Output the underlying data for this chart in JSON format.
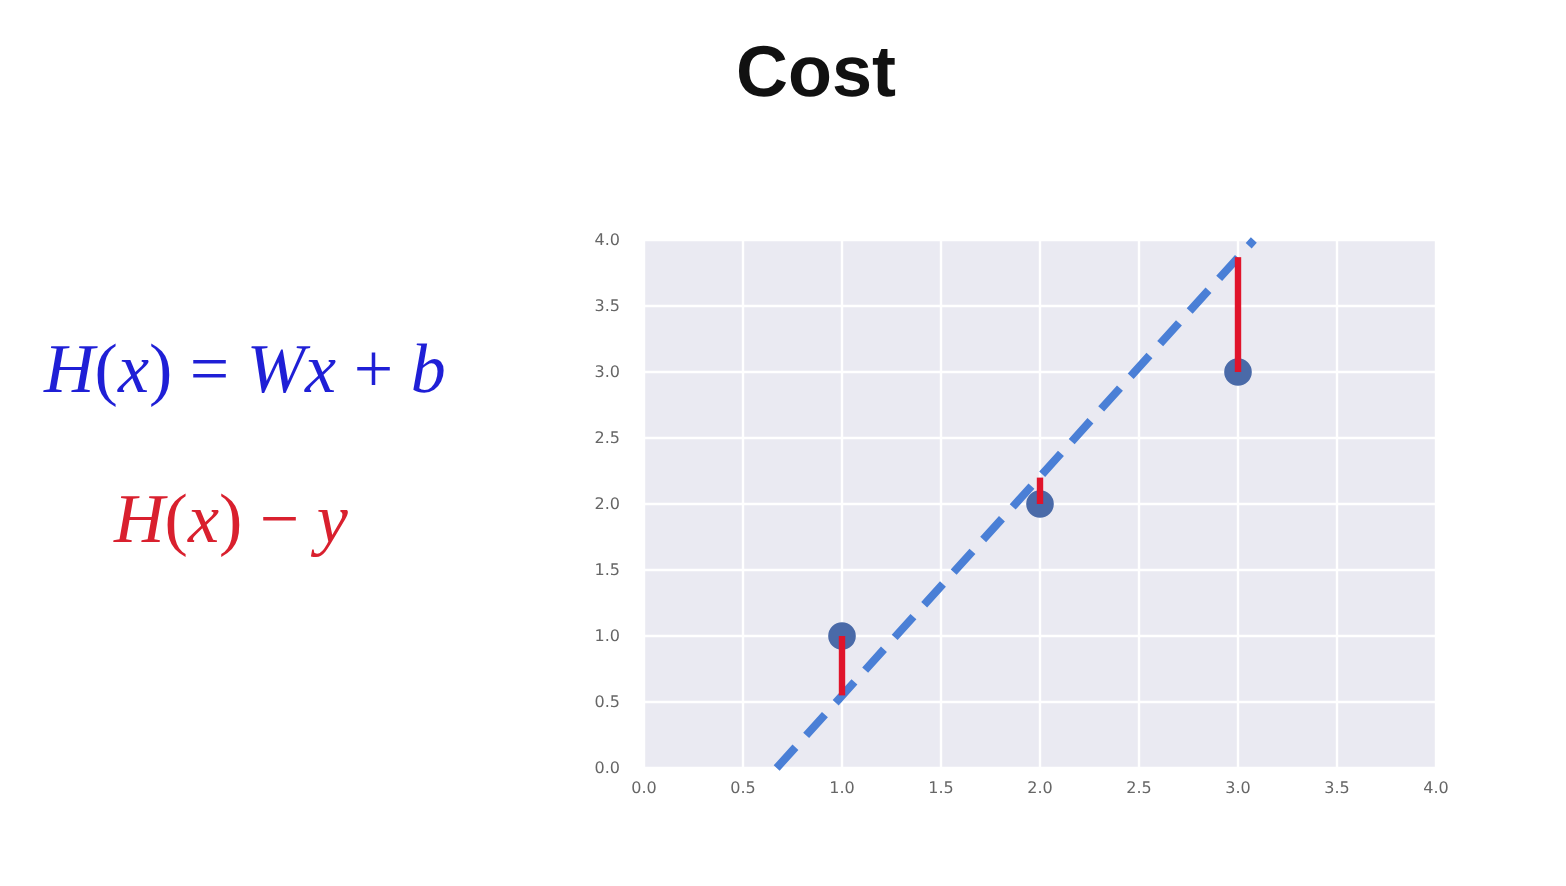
{
  "chart_data": {
    "type": "scatter",
    "title": "Cost",
    "annotations": [
      "H(x) = Wx + b",
      "H(x) − y"
    ],
    "xlim": [
      0,
      4
    ],
    "ylim": [
      0,
      4
    ],
    "xticks": [
      {
        "value": 0,
        "label": "0.0"
      },
      {
        "value": 0.5,
        "label": "0.5"
      },
      {
        "value": 1,
        "label": "1.0"
      },
      {
        "value": 1.5,
        "label": "1.5"
      },
      {
        "value": 2,
        "label": "2.0"
      },
      {
        "value": 2.5,
        "label": "2.5"
      },
      {
        "value": 3,
        "label": "3.0"
      },
      {
        "value": 3.5,
        "label": "3.5"
      },
      {
        "value": 4,
        "label": "4.0"
      }
    ],
    "yticks": [
      {
        "value": 0,
        "label": "0.0"
      },
      {
        "value": 0.5,
        "label": "0.5"
      },
      {
        "value": 1,
        "label": "1.0"
      },
      {
        "value": 1.5,
        "label": "1.5"
      },
      {
        "value": 2,
        "label": "2.0"
      },
      {
        "value": 2.5,
        "label": "2.5"
      },
      {
        "value": 3,
        "label": "3.0"
      },
      {
        "value": 3.5,
        "label": "3.5"
      },
      {
        "value": 4,
        "label": "4.0"
      }
    ],
    "grid": true,
    "marker": "circle",
    "series": [
      {
        "color": "#4a6aa8",
        "x": [
          1,
          2,
          3
        ],
        "values": [
          1.0,
          2.0,
          3.0
        ]
      },
      {
        "type": "line",
        "color": "#4a7fd6",
        "line_style": "dashed",
        "marker": "none",
        "x": [
          0.67,
          3.08
        ],
        "values": [
          0,
          4.0
        ]
      },
      {
        "type": "line",
        "color": "#e0142b",
        "marker": "none",
        "x": [
          1,
          1
        ],
        "values": [
          1.0,
          0.55
        ]
      },
      {
        "type": "line",
        "color": "#e0142b",
        "marker": "none",
        "x": [
          2,
          2
        ],
        "values": [
          2.0,
          2.2
        ]
      },
      {
        "type": "line",
        "color": "#e0142b",
        "marker": "none",
        "x": [
          3,
          3
        ],
        "values": [
          3.0,
          3.87
        ]
      }
    ]
  }
}
